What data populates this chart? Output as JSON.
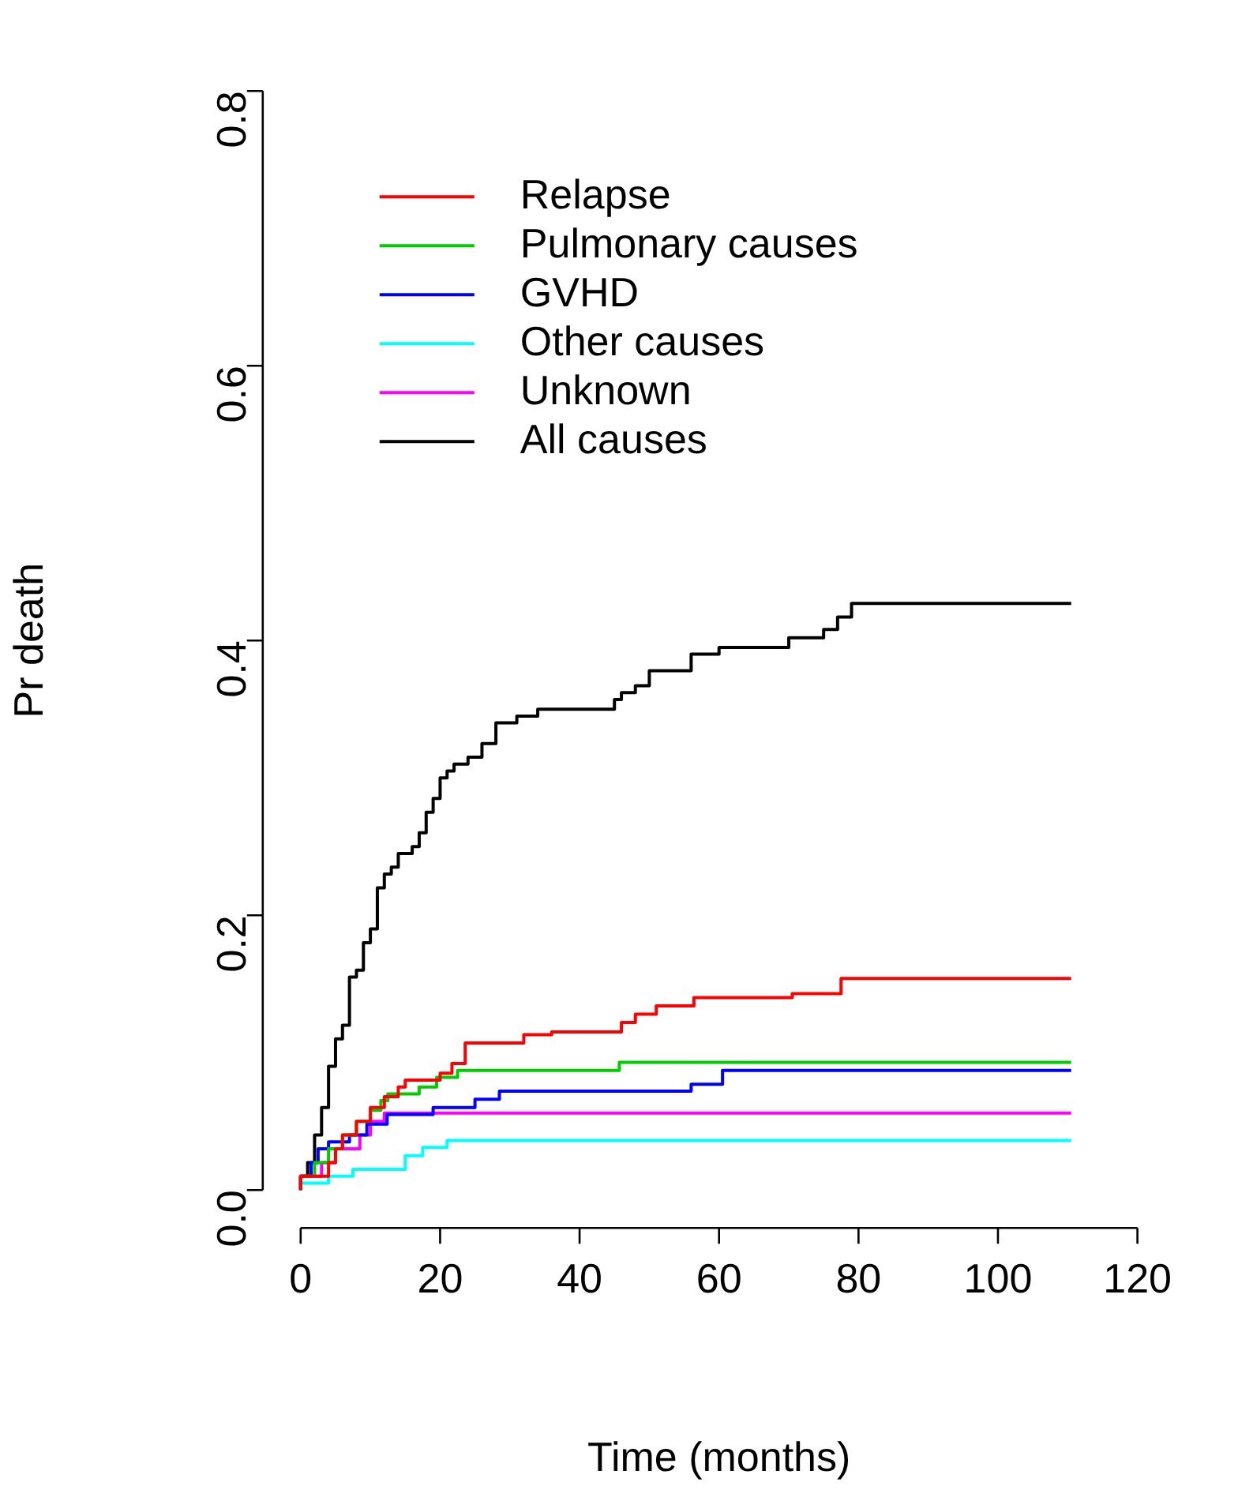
{
  "chart_data": {
    "type": "step",
    "xlabel": "Time (months)",
    "ylabel": "Pr death",
    "xlim": [
      0,
      120
    ],
    "ylim": [
      0,
      0.8
    ],
    "xticks": [
      0,
      20,
      40,
      60,
      80,
      100,
      120
    ],
    "yticks": [
      {
        "value": 0,
        "label": "0.0"
      },
      {
        "value": 0.2,
        "label": "0.2"
      },
      {
        "value": 0.4,
        "label": "0.4"
      },
      {
        "value": 0.6,
        "label": "0.6"
      },
      {
        "value": 0.8,
        "label": "0.8"
      }
    ],
    "grid": false,
    "legend": "top left",
    "marker": "none",
    "line_style": "solid",
    "series": [
      {
        "name": "Relapse",
        "color": "#ff0000",
        "x": [
          0,
          4,
          5,
          6,
          8,
          10,
          12,
          14,
          15,
          20,
          21.7,
          23.6,
          32,
          36,
          46,
          48,
          51,
          56.4,
          70.5,
          77.5,
          79.4,
          110.5
        ],
        "values": [
          0,
          0.01,
          0.02,
          0.03,
          0.04,
          0.05,
          0.06,
          0.068,
          0.075,
          0.08,
          0.085,
          0.092,
          0.107,
          0.113,
          0.115,
          0.122,
          0.128,
          0.134,
          0.14,
          0.143,
          0.154,
          0.154
        ]
      },
      {
        "name": "Pulmonary causes",
        "color": "#00cd00",
        "x": [
          0,
          2,
          4,
          6,
          8,
          10,
          11.5,
          12.5,
          17,
          19.5,
          22.5,
          45.7,
          75,
          110.5
        ],
        "values": [
          0,
          0.01,
          0.02,
          0.03,
          0.04,
          0.05,
          0.058,
          0.065,
          0.07,
          0.075,
          0.082,
          0.087,
          0.093,
          0.093
        ]
      },
      {
        "name": "GVHD",
        "color": "#0000ff",
        "x": [
          0,
          1.5,
          2.5,
          4,
          7,
          9.5,
          12.4,
          19,
          25,
          28.5,
          56,
          60.5,
          86,
          110.5
        ],
        "values": [
          0,
          0.01,
          0.02,
          0.03,
          0.035,
          0.04,
          0.048,
          0.055,
          0.06,
          0.066,
          0.072,
          0.077,
          0.087,
          0.087
        ]
      },
      {
        "name": "Other causes",
        "color": "#00ffff",
        "x": [
          0,
          4,
          7.5,
          15,
          17.5,
          21,
          60,
          110.5
        ],
        "values": [
          0,
          0.005,
          0.01,
          0.015,
          0.025,
          0.031,
          0.036,
          0.036
        ]
      },
      {
        "name": "Unknown",
        "color": "#ff00ff",
        "x": [
          0,
          3,
          5,
          8.5,
          10,
          12,
          27,
          110.5
        ],
        "values": [
          0,
          0.01,
          0.02,
          0.03,
          0.04,
          0.05,
          0.056,
          0.056
        ]
      },
      {
        "name": "All causes",
        "color": "#000000",
        "x": [
          0,
          1,
          2,
          3,
          4,
          5,
          6,
          7,
          8,
          9,
          10,
          11,
          12,
          13,
          14,
          16,
          17,
          18,
          19,
          20,
          21,
          22,
          24,
          26,
          28,
          31,
          34,
          45,
          46,
          48,
          50,
          56,
          60,
          70,
          75,
          77,
          79,
          86,
          110.5
        ],
        "values": [
          0,
          0.01,
          0.02,
          0.04,
          0.06,
          0.09,
          0.11,
          0.12,
          0.155,
          0.16,
          0.18,
          0.19,
          0.22,
          0.23,
          0.235,
          0.245,
          0.25,
          0.26,
          0.275,
          0.285,
          0.3,
          0.305,
          0.31,
          0.315,
          0.325,
          0.34,
          0.345,
          0.35,
          0.357,
          0.362,
          0.367,
          0.378,
          0.39,
          0.395,
          0.402,
          0.408,
          0.417,
          0.427,
          0.427
        ]
      }
    ]
  }
}
